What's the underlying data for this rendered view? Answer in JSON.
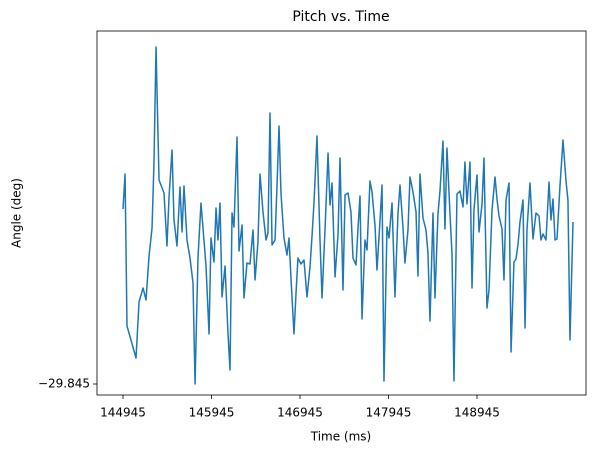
{
  "chart_data": {
    "type": "line",
    "title": "Pitch vs. Time",
    "x_label": "Time (ms)",
    "y_label": "Angle (deg)",
    "xlim": [
      144651,
      150177
    ],
    "xticks": [
      144945,
      145945,
      146945,
      147945,
      148945
    ],
    "ylim": [
      -29.845011,
      -29.844647
    ],
    "yticks": [
      {
        "value": -29.845,
        "label": "−29.845"
      }
    ],
    "series": [
      {
        "color": "#1f77b4",
        "x": [
          144945,
          144968,
          144990,
          145092,
          145126,
          145171,
          145205,
          145239,
          145273,
          145295,
          145318,
          145352,
          145408,
          145442,
          145465,
          145499,
          145521,
          145555,
          145589,
          145612,
          145634,
          145668,
          145702,
          145736,
          145759,
          145792,
          145826,
          145883,
          145917,
          145939,
          145973,
          145996,
          146018,
          146041,
          146064,
          146098,
          146131,
          146154,
          146177,
          146199,
          146233,
          146256,
          146290,
          146312,
          146346,
          146380,
          146414,
          146437,
          146470,
          146493,
          146527,
          146561,
          146583,
          146606,
          146629,
          146663,
          146685,
          146708,
          146730,
          146764,
          146798,
          146821,
          146843,
          146877,
          146900,
          146922,
          146956,
          146990,
          147024,
          147058,
          147081,
          147103,
          147137,
          147171,
          147194,
          147228,
          147262,
          147284,
          147307,
          147341,
          147375,
          147397,
          147431,
          147454,
          147488,
          147521,
          147544,
          147578,
          147600,
          147623,
          147646,
          147679,
          147702,
          147736,
          147759,
          147793,
          147815,
          147849,
          147872,
          147894,
          147928,
          147951,
          147985,
          148018,
          148052,
          148075,
          148109,
          148131,
          148165,
          148188,
          148222,
          148256,
          148278,
          148301,
          148335,
          148369,
          148391,
          148414,
          148448,
          148470,
          148504,
          148527,
          148561,
          148583,
          148606,
          148640,
          148663,
          148685,
          148719,
          148753,
          148787,
          148809,
          148832,
          148866,
          148889,
          148911,
          148945,
          148968,
          149002,
          149024,
          149058,
          149081,
          149115,
          149149,
          149171,
          149194,
          149228,
          149250,
          149273,
          149307,
          149330,
          149363,
          149386,
          149409,
          149431,
          149465,
          149488,
          149510,
          149544,
          149578,
          149612,
          149646,
          149668,
          149691,
          149725,
          149759,
          149781,
          149804,
          149827,
          149849,
          149883,
          149917,
          149951,
          149973,
          149996,
          150030
        ],
        "values": [
          -29.844825,
          -29.84479,
          -29.844942,
          -29.844974,
          -29.844918,
          -29.844904,
          -29.844916,
          -29.844872,
          -29.844844,
          -29.844778,
          -29.844663,
          -29.844796,
          -29.844809,
          -29.844862,
          -29.844813,
          -29.844766,
          -29.844836,
          -29.844862,
          -29.844803,
          -29.844848,
          -29.844802,
          -29.844856,
          -29.844874,
          -29.844899,
          -29.845,
          -29.844874,
          -29.844819,
          -29.844882,
          -29.84495,
          -29.844854,
          -29.844878,
          -29.844824,
          -29.844856,
          -29.844819,
          -29.844913,
          -29.844882,
          -29.844949,
          -29.844986,
          -29.844829,
          -29.844843,
          -29.844753,
          -29.844867,
          -29.844841,
          -29.844914,
          -29.844879,
          -29.84488,
          -29.844846,
          -29.844896,
          -29.844858,
          -29.84479,
          -29.844828,
          -29.844856,
          -29.844849,
          -29.844729,
          -29.844861,
          -29.844856,
          -29.844802,
          -29.844742,
          -29.844809,
          -29.844854,
          -29.844871,
          -29.844854,
          -29.844894,
          -29.84495,
          -29.844909,
          -29.844874,
          -29.84488,
          -29.844876,
          -29.844913,
          -29.844883,
          -29.844852,
          -29.844819,
          -29.844752,
          -29.844856,
          -29.844914,
          -29.844845,
          -29.844769,
          -29.844821,
          -29.844799,
          -29.844893,
          -29.84485,
          -29.844774,
          -29.844906,
          -29.844811,
          -29.844809,
          -29.844828,
          -29.844874,
          -29.844881,
          -29.844845,
          -29.844812,
          -29.844935,
          -29.844856,
          -29.844866,
          -29.844797,
          -29.844808,
          -29.844842,
          -29.844886,
          -29.844837,
          -29.844801,
          -29.844997,
          -29.844843,
          -29.844854,
          -29.844819,
          -29.844913,
          -29.84483,
          -29.844801,
          -29.844844,
          -29.844879,
          -29.844846,
          -29.844793,
          -29.844808,
          -29.844828,
          -29.844892,
          -29.84479,
          -29.844834,
          -29.844846,
          -29.844869,
          -29.844937,
          -29.844829,
          -29.844914,
          -29.84483,
          -29.844807,
          -29.844757,
          -29.844845,
          -29.844764,
          -29.84483,
          -29.84487,
          -29.844997,
          -29.84481,
          -29.844807,
          -29.844823,
          -29.844778,
          -29.84482,
          -29.844778,
          -29.844904,
          -29.844826,
          -29.844791,
          -29.844848,
          -29.84482,
          -29.844774,
          -29.844924,
          -29.844906,
          -29.844826,
          -29.844793,
          -29.844815,
          -29.844832,
          -29.844845,
          -29.844896,
          -29.844816,
          -29.844799,
          -29.844968,
          -29.844878,
          -29.844875,
          -29.84486,
          -29.844838,
          -29.844816,
          -29.844944,
          -29.844846,
          -29.844799,
          -29.844855,
          -29.844829,
          -29.844832,
          -29.844856,
          -29.84485,
          -29.844856,
          -29.844798,
          -29.844836,
          -29.844815,
          -29.844856,
          -29.844855,
          -29.844802,
          -29.844756,
          -29.844797,
          -29.844816,
          -29.844956,
          -29.844838
        ]
      }
    ]
  }
}
